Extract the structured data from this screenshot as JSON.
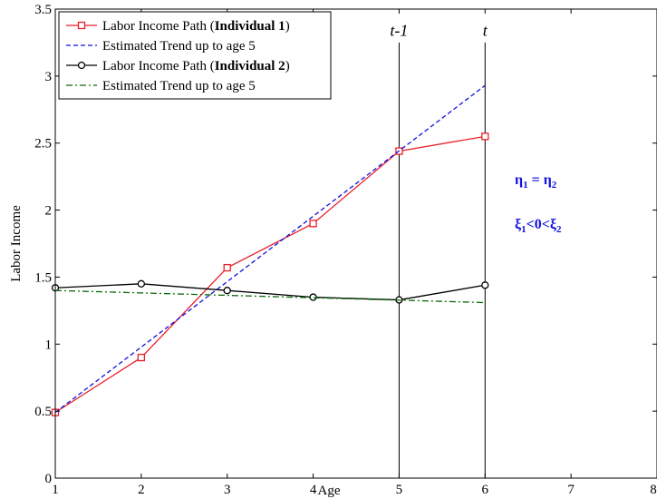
{
  "chart_data": {
    "type": "line",
    "xlabel": "Age",
    "ylabel": "Labor Income",
    "xlim": [
      1,
      8
    ],
    "ylim": [
      0,
      3.5
    ],
    "x_ticks": [
      "1",
      "2",
      "3",
      "4",
      "5",
      "6",
      "7",
      "8"
    ],
    "y_ticks": [
      "0",
      "0.5",
      "1",
      "1.5",
      "2",
      "2.5",
      "3",
      "3.5"
    ],
    "x_tick_values": [
      1,
      2,
      3,
      4,
      5,
      6,
      7,
      8
    ],
    "y_tick_values": [
      0,
      0.5,
      1,
      1.5,
      2,
      2.5,
      3,
      3.5
    ],
    "grid": false,
    "legend_position": "top-left",
    "series": [
      {
        "name_prefix": "Labor Income Path (",
        "name_bold": "Individual 1",
        "name_suffix": ")",
        "style": "solid",
        "marker": "square",
        "color": "#e8202a",
        "x": [
          1,
          2,
          3,
          4,
          5,
          6
        ],
        "y": [
          0.49,
          0.9,
          1.57,
          1.9,
          2.44,
          2.55
        ]
      },
      {
        "name": "Estimated Trend up to age 5",
        "style": "dashed",
        "marker": "none",
        "color": "#1010e0",
        "x": [
          1,
          6
        ],
        "y": [
          0.49,
          2.93
        ]
      },
      {
        "name_prefix": "Labor Income Path (",
        "name_bold": "Individual 2",
        "name_suffix": ")",
        "style": "solid",
        "marker": "circle",
        "color": "#000000",
        "x": [
          1,
          2,
          3,
          4,
          5,
          6
        ],
        "y": [
          1.42,
          1.45,
          1.4,
          1.35,
          1.33,
          1.44
        ]
      },
      {
        "name": "Estimated Trend up to age 5",
        "style": "dashdot",
        "marker": "none",
        "color": "#0a6a0a",
        "x": [
          1,
          6
        ],
        "y": [
          1.4,
          1.31
        ]
      }
    ],
    "vertical_lines": [
      {
        "x": 5,
        "label": "t-1"
      },
      {
        "x": 6,
        "label": "t"
      }
    ],
    "annotations": [
      {
        "parts": [
          [
            "η",
            ""
          ],
          [
            "1",
            "sub"
          ],
          [
            " = η",
            ""
          ],
          [
            "2",
            "sub"
          ]
        ]
      },
      {
        "parts": [
          [
            "ξ",
            ""
          ],
          [
            "1",
            "sub"
          ],
          [
            "<0<ξ",
            ""
          ],
          [
            "2",
            "sub"
          ]
        ]
      }
    ]
  }
}
